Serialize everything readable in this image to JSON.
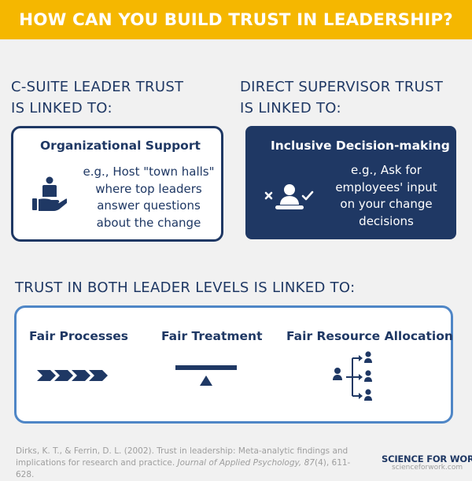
{
  "header": {
    "title": "HOW CAN YOU BUILD TRUST IN LEADERSHIP?"
  },
  "c_suite": {
    "heading_line1": "C-SUITE LEADER TRUST",
    "heading_line2": "IS LINKED TO:",
    "box_title": "Organizational Support",
    "body_lines": [
      "e.g., Host \"town halls\"",
      "where top leaders",
      "answer questions",
      "about the change"
    ],
    "icon": "hand-holding-person-icon"
  },
  "supervisor": {
    "heading_line1": "DIRECT SUPERVISOR TRUST",
    "heading_line2": "IS LINKED TO:",
    "box_title": "Inclusive Decision-making",
    "body_lines": [
      "e.g., Ask for",
      "employees' input",
      "on  your change",
      "decisions"
    ],
    "icon": "person-decision-icon"
  },
  "both": {
    "heading": "TRUST IN BOTH LEADER LEVELS IS LINKED TO:",
    "items": [
      {
        "label": "Fair Processes",
        "icon": "chevrons-process-icon"
      },
      {
        "label": "Fair Treatment",
        "icon": "balance-seesaw-icon"
      },
      {
        "label": "Fair Resource Allocation",
        "icon": "resource-allocation-icon"
      }
    ]
  },
  "citation": {
    "line1": "Dirks, K. T., & Ferrin, D. L. (2002). Trust in leadership: Meta-analytic findings and",
    "line2_plain": "implications for research and practice. ",
    "journal": "Journal of Applied Psychology, 87",
    "rest": "(4), 611-628."
  },
  "brand": {
    "name_part1": "SCIENCE",
    "name_part2": "FOR WORK",
    "url": "scienceforwork.com"
  },
  "colors": {
    "banner": "#f5b700",
    "navy": "#1f3864",
    "blue_border": "#4f86c6",
    "background": "#f1f1f1"
  }
}
